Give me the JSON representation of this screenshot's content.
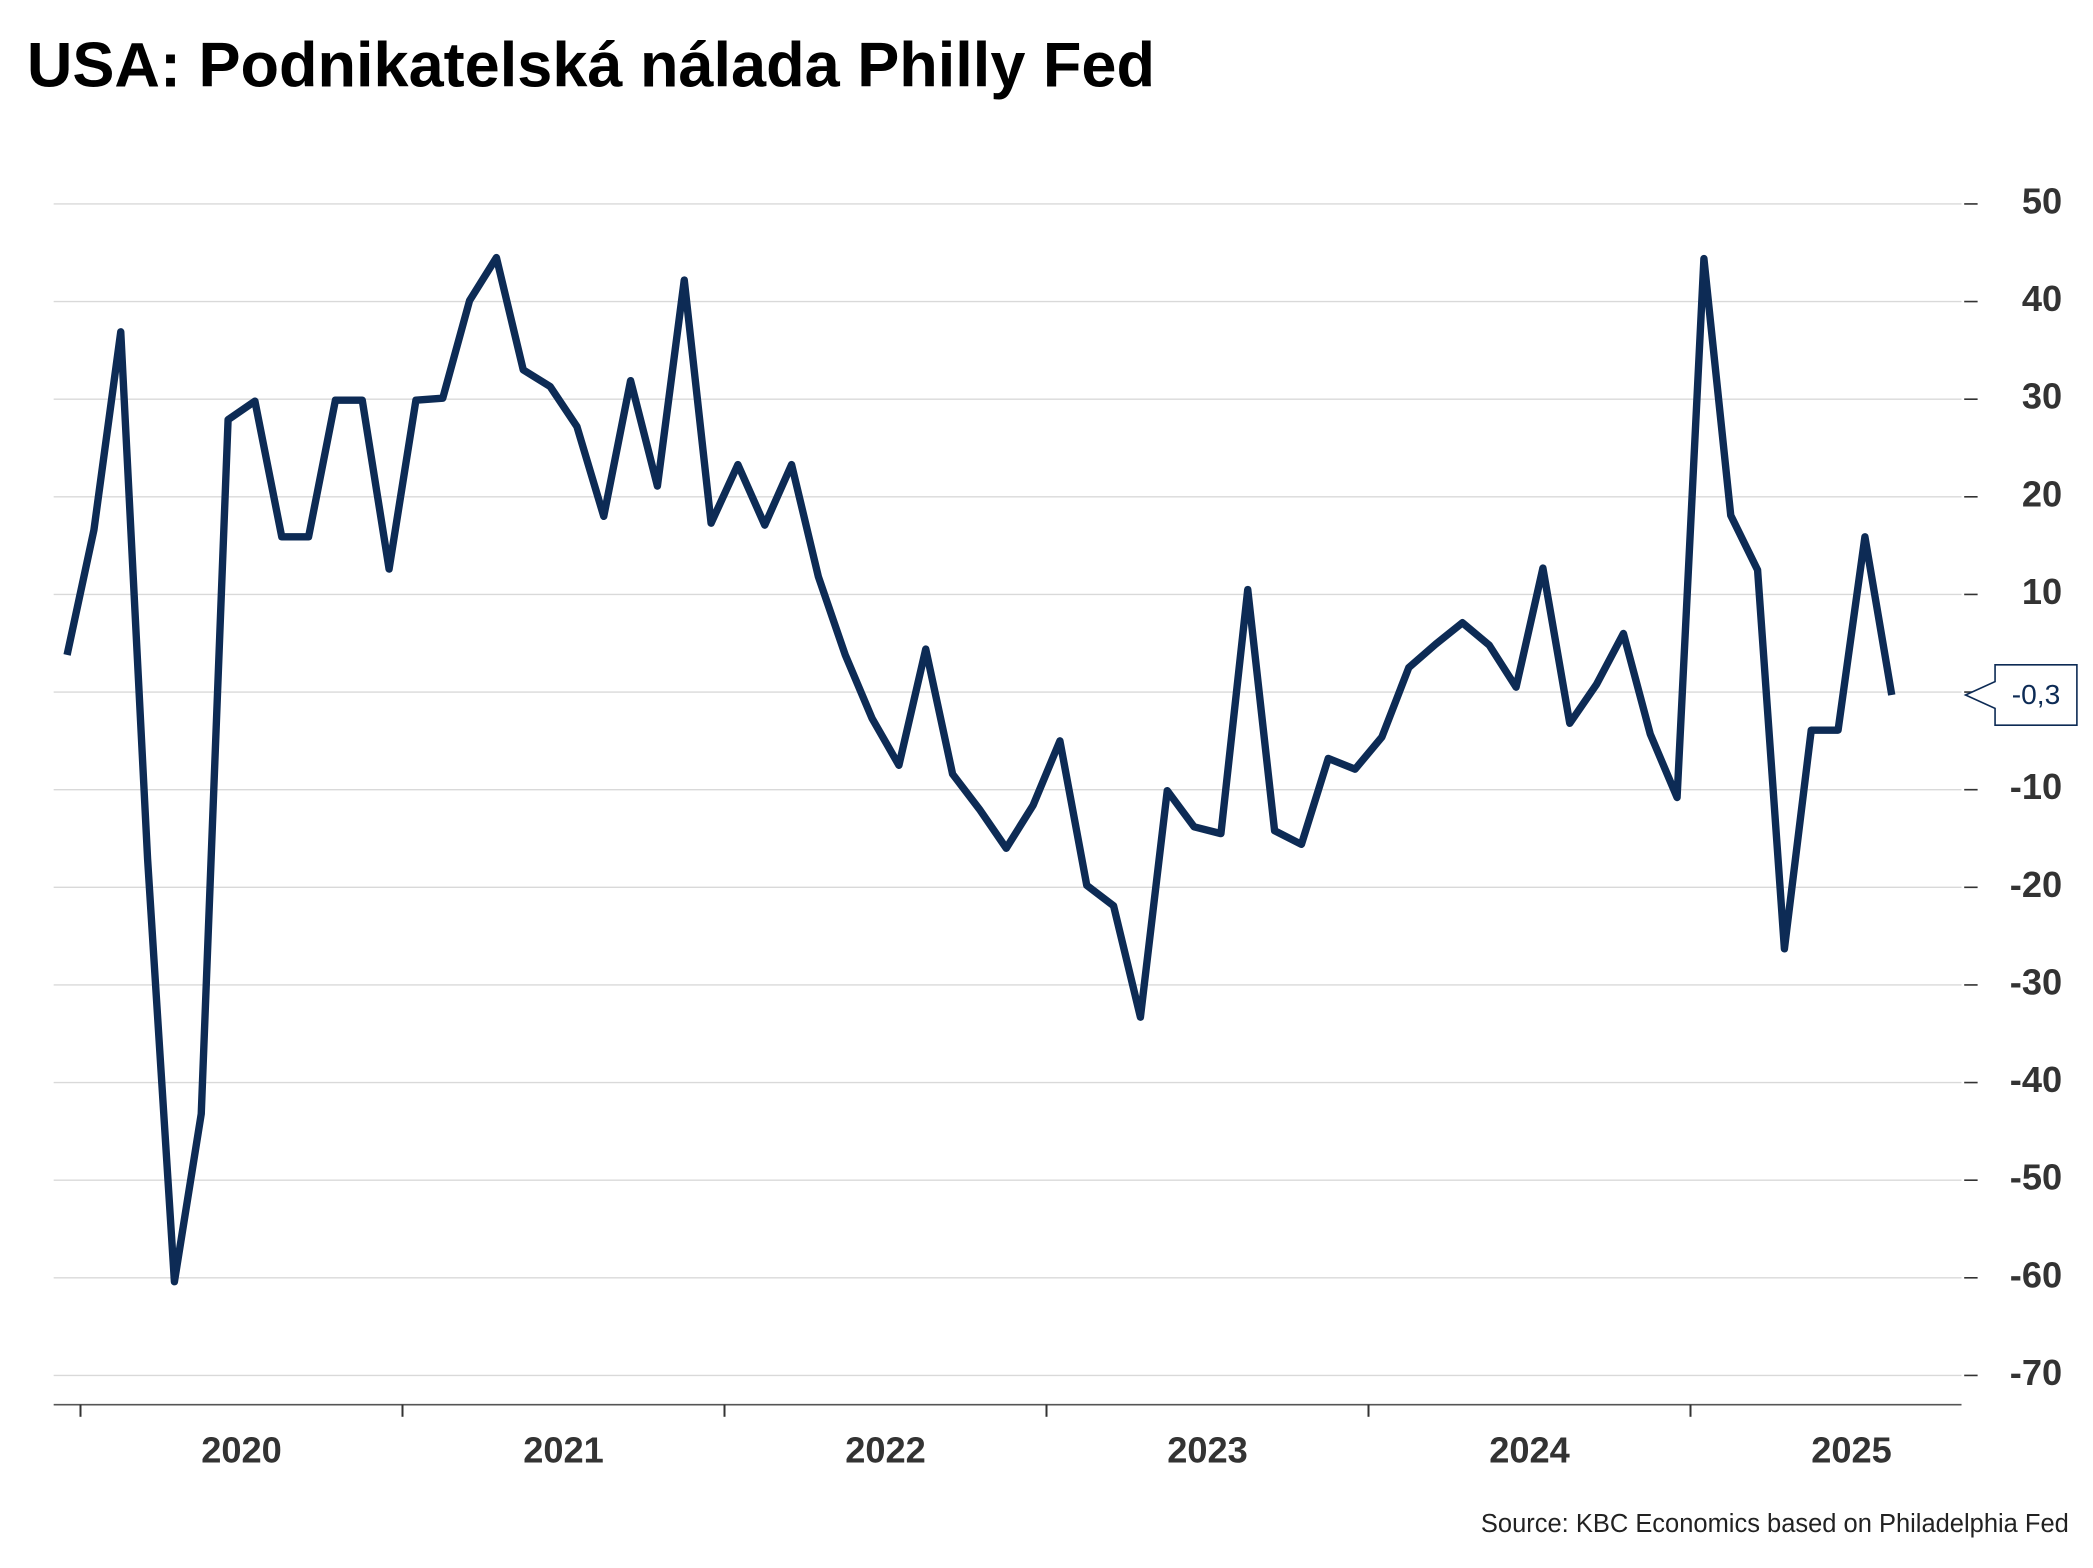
{
  "chart_data": {
    "type": "line",
    "title": "USA: Podnikatelská nálada Philly Fed",
    "source": "Source: KBC Economics based on Philadelphia Fed",
    "categories": [
      null,
      null,
      null,
      null,
      null,
      null,
      null,
      null,
      null,
      null,
      null,
      null,
      null,
      null,
      null,
      null,
      null,
      null,
      null,
      null,
      null,
      null,
      null,
      null,
      null,
      null,
      null,
      null,
      null,
      null,
      null,
      null,
      null,
      null,
      null,
      null,
      null,
      null,
      null,
      null,
      null,
      null,
      null,
      null,
      null,
      null,
      null,
      null,
      null,
      null,
      null,
      null,
      null,
      null,
      null,
      null,
      null,
      null,
      null,
      null,
      null,
      null,
      null,
      null,
      null,
      null,
      null,
      null,
      null
    ],
    "year_labels": [
      "2020",
      "2021",
      "2022",
      "2023",
      "2024",
      "2025"
    ],
    "series": [
      {
        "name": null,
        "color": "#0d2b55",
        "values": [
          3.8,
          16.6,
          36.9,
          -17.1,
          -60.4,
          -43.2,
          27.9,
          29.8,
          15.9,
          15.9,
          29.9,
          29.9,
          12.6,
          29.9,
          30.1,
          40.1,
          44.5,
          33.0,
          31.3,
          27.2,
          18.0,
          31.9,
          21.1,
          42.2,
          17.3,
          23.3,
          17.1,
          23.3,
          11.8,
          3.8,
          -2.7,
          -7.5,
          4.4,
          -8.4,
          -12.0,
          -16.0,
          -11.6,
          -5.0,
          -19.8,
          -21.9,
          -33.3,
          -10.1,
          -13.8,
          -14.5,
          10.5,
          -14.2,
          -15.6,
          -6.8,
          -7.9,
          -4.6,
          2.5,
          4.9,
          7.1,
          4.8,
          0.5,
          12.7,
          -3.2,
          0.8,
          6.0,
          -4.3,
          -10.8,
          44.4,
          18.1,
          12.5,
          -26.3,
          -3.9,
          -3.9,
          15.9,
          -0.3
        ],
        "value_labels": [
          null,
          null,
          null,
          null,
          null,
          null,
          null,
          null,
          null,
          null,
          null,
          null,
          null,
          null,
          null,
          null,
          null,
          null,
          null,
          null,
          null,
          null,
          null,
          null,
          null,
          null,
          null,
          null,
          null,
          null,
          null,
          null,
          null,
          null,
          null,
          null,
          null,
          null,
          null,
          null,
          null,
          null,
          null,
          null,
          null,
          null,
          null,
          null,
          null,
          null,
          null,
          null,
          null,
          null,
          null,
          null,
          null,
          null,
          null,
          null,
          null,
          null,
          null,
          null,
          null,
          null,
          null,
          null,
          "-0,3"
        ]
      }
    ],
    "ylim": [
      -73,
      50
    ],
    "yticks": [
      50,
      40,
      30,
      20,
      10,
      0,
      -10,
      -20,
      -30,
      -40,
      -50,
      -60,
      -70
    ],
    "ytick_labels_hidden": [
      0
    ],
    "grid": true
  }
}
